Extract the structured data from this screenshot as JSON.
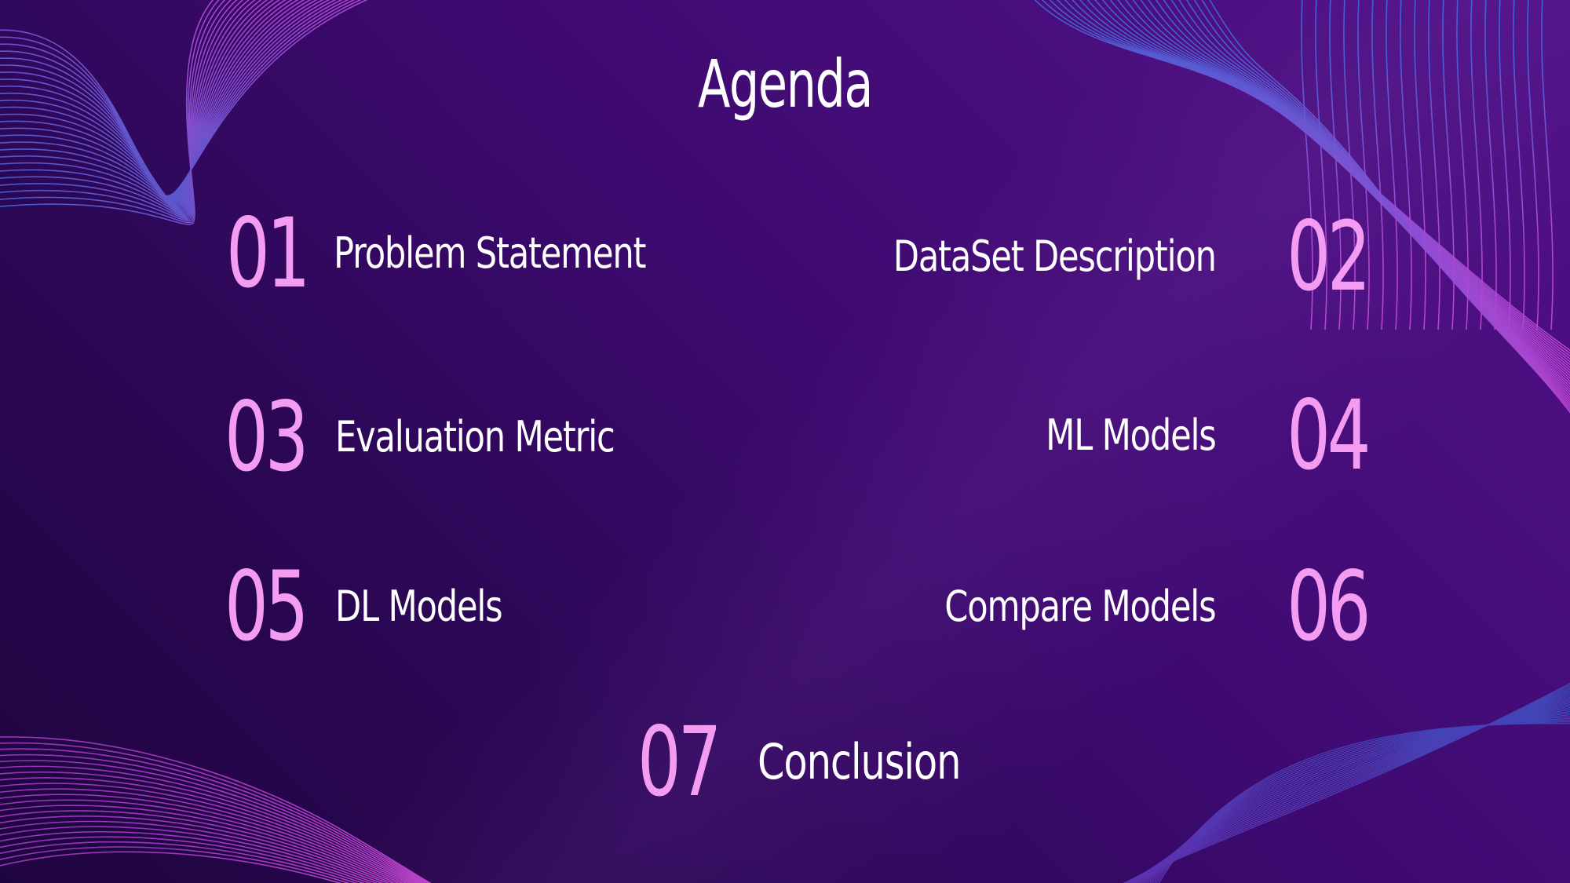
{
  "slide": {
    "title": "Agenda",
    "items": [
      {
        "number": "01",
        "label": "Problem Statement"
      },
      {
        "number": "02",
        "label": "DataSet Description"
      },
      {
        "number": "03",
        "label": "Evaluation Metric"
      },
      {
        "number": "04",
        "label": "ML Models"
      },
      {
        "number": "05",
        "label": "DL Models"
      },
      {
        "number": "06",
        "label": "Compare Models"
      },
      {
        "number": "07",
        "label": "Conclusion"
      }
    ]
  },
  "colors": {
    "background_dark": "#1f053f",
    "background_light": "#4f1086",
    "number_pink": "#f49cf2",
    "text_white": "#ffffff",
    "wave_blue": "#3a6fe0",
    "wave_magenta": "#d04be0"
  }
}
